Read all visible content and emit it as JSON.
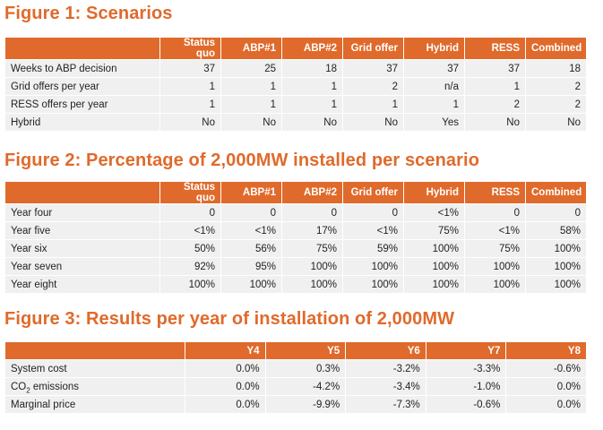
{
  "figure1": {
    "title": "Figure 1: Scenarios",
    "columns": [
      "",
      "Status quo",
      "ABP#1",
      "ABP#2",
      "Grid offer",
      "Hybrid",
      "RESS",
      "Combined"
    ],
    "rows": [
      {
        "label": "Weeks to ABP decision",
        "values": [
          "37",
          "25",
          "18",
          "37",
          "37",
          "37",
          "18"
        ]
      },
      {
        "label": "Grid offers per year",
        "values": [
          "1",
          "1",
          "1",
          "2",
          "n/a",
          "1",
          "2"
        ]
      },
      {
        "label": "RESS offers per year",
        "values": [
          "1",
          "1",
          "1",
          "1",
          "1",
          "2",
          "2"
        ]
      },
      {
        "label": "Hybrid",
        "values": [
          "No",
          "No",
          "No",
          "No",
          "Yes",
          "No",
          "No"
        ]
      }
    ]
  },
  "figure2": {
    "title": "Figure 2: Percentage of 2,000MW installed per scenario",
    "columns": [
      "",
      "Status quo",
      "ABP#1",
      "ABP#2",
      "Grid offer",
      "Hybrid",
      "RESS",
      "Combined"
    ],
    "rows": [
      {
        "label": "Year four",
        "values": [
          "0",
          "0",
          "0",
          "0",
          "<1%",
          "0",
          "0"
        ]
      },
      {
        "label": "Year five",
        "values": [
          "<1%",
          "<1%",
          "17%",
          "<1%",
          "75%",
          "<1%",
          "58%"
        ]
      },
      {
        "label": "Year six",
        "values": [
          "50%",
          "56%",
          "75%",
          "59%",
          "100%",
          "75%",
          "100%"
        ]
      },
      {
        "label": "Year seven",
        "values": [
          "92%",
          "95%",
          "100%",
          "100%",
          "100%",
          "100%",
          "100%"
        ]
      },
      {
        "label": "Year eight",
        "values": [
          "100%",
          "100%",
          "100%",
          "100%",
          "100%",
          "100%",
          "100%"
        ]
      }
    ]
  },
  "figure3": {
    "title": "Figure 3: Results per year of installation of 2,000MW",
    "columns": [
      "",
      "Y4",
      "Y5",
      "Y6",
      "Y7",
      "Y8"
    ],
    "rows": [
      {
        "label": "System cost",
        "values": [
          "0.0%",
          "0.3%",
          "-3.2%",
          "-3.3%",
          "-0.6%"
        ]
      },
      {
        "label_prefix": "CO",
        "label_sub": "2",
        "label_suffix": " emissions",
        "values": [
          "0.0%",
          "-4.2%",
          "-3.4%",
          "-1.0%",
          "0.0%"
        ]
      },
      {
        "label": "Marginal price",
        "values": [
          "0.0%",
          "-9.9%",
          "-7.3%",
          "-0.6%",
          "0.0%"
        ]
      }
    ]
  },
  "colors": {
    "accent": "#e06a2b",
    "cell_bg": "#f0f0f0"
  }
}
